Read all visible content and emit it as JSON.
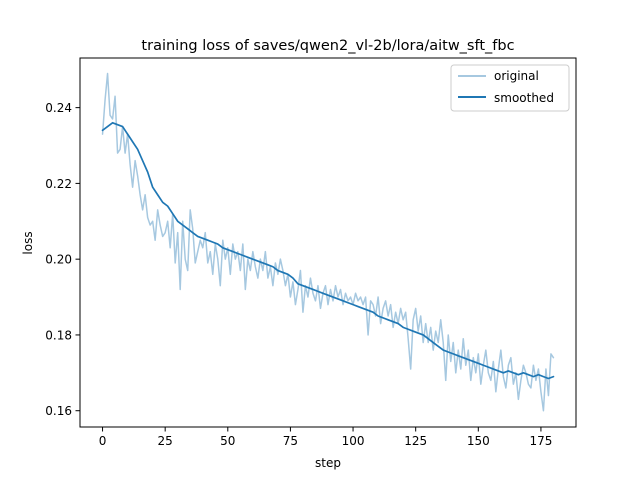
{
  "chart_data": {
    "type": "line",
    "title": "training loss of saves/qwen2_vl-2b/lora/aitw_sft_fbc",
    "xlabel": "step",
    "ylabel": "loss",
    "xlim": [
      -9,
      189
    ],
    "ylim": [
      0.1557,
      0.2531
    ],
    "xticks": [
      0,
      25,
      50,
      75,
      100,
      125,
      150,
      175
    ],
    "yticks": [
      0.16,
      0.18,
      0.2,
      0.22,
      0.24
    ],
    "ytick_labels": [
      "0.16",
      "0.18",
      "0.20",
      "0.22",
      "0.24"
    ],
    "grid": false,
    "legend_position": "top-right",
    "colors": {
      "original": "#a6c8e0",
      "smoothed": "#1f77b4"
    },
    "series": [
      {
        "name": "original",
        "points": [
          [
            0,
            0.233
          ],
          [
            1,
            0.242
          ],
          [
            2,
            0.249
          ],
          [
            3,
            0.238
          ],
          [
            4,
            0.237
          ],
          [
            5,
            0.243
          ],
          [
            6,
            0.228
          ],
          [
            7,
            0.229
          ],
          [
            8,
            0.235
          ],
          [
            9,
            0.228
          ],
          [
            10,
            0.233
          ],
          [
            11,
            0.225
          ],
          [
            12,
            0.219
          ],
          [
            13,
            0.226
          ],
          [
            14,
            0.222
          ],
          [
            15,
            0.217
          ],
          [
            16,
            0.213
          ],
          [
            17,
            0.217
          ],
          [
            18,
            0.211
          ],
          [
            19,
            0.209
          ],
          [
            20,
            0.21
          ],
          [
            21,
            0.205
          ],
          [
            22,
            0.213
          ],
          [
            23,
            0.209
          ],
          [
            24,
            0.206
          ],
          [
            25,
            0.207
          ],
          [
            26,
            0.21
          ],
          [
            27,
            0.203
          ],
          [
            28,
            0.212
          ],
          [
            29,
            0.199
          ],
          [
            30,
            0.207
          ],
          [
            31,
            0.192
          ],
          [
            32,
            0.21
          ],
          [
            33,
            0.2
          ],
          [
            34,
            0.197
          ],
          [
            35,
            0.213
          ],
          [
            36,
            0.208
          ],
          [
            37,
            0.199
          ],
          [
            38,
            0.202
          ],
          [
            39,
            0.205
          ],
          [
            40,
            0.203
          ],
          [
            41,
            0.207
          ],
          [
            42,
            0.199
          ],
          [
            43,
            0.202
          ],
          [
            44,
            0.196
          ],
          [
            45,
            0.204
          ],
          [
            46,
            0.2
          ],
          [
            47,
            0.193
          ],
          [
            48,
            0.205
          ],
          [
            49,
            0.2
          ],
          [
            50,
            0.203
          ],
          [
            51,
            0.196
          ],
          [
            52,
            0.204
          ],
          [
            53,
            0.2
          ],
          [
            54,
            0.202
          ],
          [
            55,
            0.197
          ],
          [
            56,
            0.204
          ],
          [
            57,
            0.192
          ],
          [
            58,
            0.2
          ],
          [
            59,
            0.197
          ],
          [
            60,
            0.202
          ],
          [
            61,
            0.198
          ],
          [
            62,
            0.195
          ],
          [
            63,
            0.2
          ],
          [
            64,
            0.197
          ],
          [
            65,
            0.202
          ],
          [
            66,
            0.195
          ],
          [
            67,
            0.198
          ],
          [
            68,
            0.193
          ],
          [
            69,
            0.199
          ],
          [
            70,
            0.196
          ],
          [
            71,
            0.2
          ],
          [
            72,
            0.197
          ],
          [
            73,
            0.193
          ],
          [
            74,
            0.196
          ],
          [
            75,
            0.19
          ],
          [
            76,
            0.194
          ],
          [
            77,
            0.188
          ],
          [
            78,
            0.192
          ],
          [
            79,
            0.197
          ],
          [
            80,
            0.186
          ],
          [
            81,
            0.193
          ],
          [
            82,
            0.19
          ],
          [
            83,
            0.195
          ],
          [
            84,
            0.191
          ],
          [
            85,
            0.189
          ],
          [
            86,
            0.193
          ],
          [
            87,
            0.187
          ],
          [
            88,
            0.191
          ],
          [
            89,
            0.193
          ],
          [
            90,
            0.188
          ],
          [
            91,
            0.192
          ],
          [
            92,
            0.189
          ],
          [
            93,
            0.193
          ],
          [
            94,
            0.19
          ],
          [
            95,
            0.192
          ],
          [
            96,
            0.188
          ],
          [
            97,
            0.191
          ],
          [
            98,
            0.189
          ],
          [
            99,
            0.19
          ],
          [
            100,
            0.188
          ],
          [
            101,
            0.191
          ],
          [
            102,
            0.189
          ],
          [
            103,
            0.19
          ],
          [
            104,
            0.188
          ],
          [
            105,
            0.19
          ],
          [
            106,
            0.18
          ],
          [
            107,
            0.189
          ],
          [
            108,
            0.188
          ],
          [
            109,
            0.185
          ],
          [
            110,
            0.19
          ],
          [
            111,
            0.183
          ],
          [
            112,
            0.187
          ],
          [
            113,
            0.189
          ],
          [
            114,
            0.185
          ],
          [
            115,
            0.188
          ],
          [
            116,
            0.182
          ],
          [
            117,
            0.186
          ],
          [
            118,
            0.183
          ],
          [
            119,
            0.187
          ],
          [
            120,
            0.184
          ],
          [
            121,
            0.186
          ],
          [
            122,
            0.179
          ],
          [
            123,
            0.171
          ],
          [
            124,
            0.184
          ],
          [
            125,
            0.187
          ],
          [
            126,
            0.181
          ],
          [
            127,
            0.185
          ],
          [
            128,
            0.178
          ],
          [
            129,
            0.183
          ],
          [
            130,
            0.178
          ],
          [
            131,
            0.182
          ],
          [
            132,
            0.176
          ],
          [
            133,
            0.181
          ],
          [
            134,
            0.178
          ],
          [
            135,
            0.184
          ],
          [
            136,
            0.178
          ],
          [
            137,
            0.168
          ],
          [
            138,
            0.18
          ],
          [
            139,
            0.173
          ],
          [
            140,
            0.178
          ],
          [
            141,
            0.17
          ],
          [
            142,
            0.176
          ],
          [
            143,
            0.171
          ],
          [
            144,
            0.179
          ],
          [
            145,
            0.172
          ],
          [
            146,
            0.176
          ],
          [
            147,
            0.168
          ],
          [
            148,
            0.174
          ],
          [
            149,
            0.17
          ],
          [
            150,
            0.175
          ],
          [
            151,
            0.167
          ],
          [
            152,
            0.172
          ],
          [
            153,
            0.176
          ],
          [
            154,
            0.17
          ],
          [
            155,
            0.168
          ],
          [
            156,
            0.173
          ],
          [
            157,
            0.165
          ],
          [
            158,
            0.171
          ],
          [
            159,
            0.176
          ],
          [
            160,
            0.169
          ],
          [
            161,
            0.166
          ],
          [
            162,
            0.172
          ],
          [
            163,
            0.174
          ],
          [
            164,
            0.167
          ],
          [
            165,
            0.17
          ],
          [
            166,
            0.163
          ],
          [
            167,
            0.168
          ],
          [
            168,
            0.172
          ],
          [
            169,
            0.17
          ],
          [
            170,
            0.167
          ],
          [
            171,
            0.166
          ],
          [
            172,
            0.172
          ],
          [
            173,
            0.168
          ],
          [
            174,
            0.171
          ],
          [
            175,
            0.165
          ],
          [
            176,
            0.16
          ],
          [
            177,
            0.171
          ],
          [
            178,
            0.164
          ],
          [
            179,
            0.175
          ],
          [
            180,
            0.174
          ]
        ]
      },
      {
        "name": "smoothed",
        "points": [
          [
            0,
            0.234
          ],
          [
            2,
            0.235
          ],
          [
            4,
            0.236
          ],
          [
            6,
            0.2355
          ],
          [
            8,
            0.235
          ],
          [
            10,
            0.233
          ],
          [
            12,
            0.231
          ],
          [
            14,
            0.229
          ],
          [
            16,
            0.226
          ],
          [
            18,
            0.223
          ],
          [
            20,
            0.219
          ],
          [
            22,
            0.217
          ],
          [
            24,
            0.215
          ],
          [
            26,
            0.214
          ],
          [
            28,
            0.212
          ],
          [
            30,
            0.21
          ],
          [
            32,
            0.209
          ],
          [
            34,
            0.208
          ],
          [
            36,
            0.207
          ],
          [
            38,
            0.206
          ],
          [
            40,
            0.2055
          ],
          [
            42,
            0.205
          ],
          [
            44,
            0.2045
          ],
          [
            46,
            0.204
          ],
          [
            48,
            0.203
          ],
          [
            50,
            0.2025
          ],
          [
            52,
            0.202
          ],
          [
            54,
            0.2015
          ],
          [
            56,
            0.201
          ],
          [
            58,
            0.2005
          ],
          [
            60,
            0.2
          ],
          [
            62,
            0.1995
          ],
          [
            64,
            0.199
          ],
          [
            66,
            0.1985
          ],
          [
            68,
            0.198
          ],
          [
            70,
            0.197
          ],
          [
            72,
            0.1965
          ],
          [
            74,
            0.196
          ],
          [
            76,
            0.195
          ],
          [
            78,
            0.1935
          ],
          [
            80,
            0.193
          ],
          [
            82,
            0.1925
          ],
          [
            84,
            0.192
          ],
          [
            86,
            0.1915
          ],
          [
            88,
            0.191
          ],
          [
            90,
            0.1905
          ],
          [
            92,
            0.19
          ],
          [
            94,
            0.1895
          ],
          [
            96,
            0.189
          ],
          [
            98,
            0.1885
          ],
          [
            100,
            0.188
          ],
          [
            102,
            0.1875
          ],
          [
            104,
            0.187
          ],
          [
            106,
            0.1865
          ],
          [
            108,
            0.186
          ],
          [
            110,
            0.185
          ],
          [
            112,
            0.1845
          ],
          [
            114,
            0.184
          ],
          [
            116,
            0.1835
          ],
          [
            118,
            0.183
          ],
          [
            120,
            0.182
          ],
          [
            122,
            0.1815
          ],
          [
            124,
            0.181
          ],
          [
            126,
            0.1805
          ],
          [
            128,
            0.18
          ],
          [
            130,
            0.179
          ],
          [
            132,
            0.178
          ],
          [
            134,
            0.177
          ],
          [
            136,
            0.176
          ],
          [
            138,
            0.1755
          ],
          [
            140,
            0.175
          ],
          [
            142,
            0.1745
          ],
          [
            144,
            0.174
          ],
          [
            146,
            0.1735
          ],
          [
            148,
            0.173
          ],
          [
            150,
            0.1725
          ],
          [
            152,
            0.172
          ],
          [
            154,
            0.1715
          ],
          [
            156,
            0.171
          ],
          [
            158,
            0.1705
          ],
          [
            160,
            0.17
          ],
          [
            162,
            0.1705
          ],
          [
            164,
            0.17
          ],
          [
            166,
            0.1695
          ],
          [
            168,
            0.17
          ],
          [
            170,
            0.1695
          ],
          [
            172,
            0.169
          ],
          [
            174,
            0.1695
          ],
          [
            176,
            0.169
          ],
          [
            178,
            0.1685
          ],
          [
            180,
            0.169
          ]
        ]
      }
    ]
  }
}
